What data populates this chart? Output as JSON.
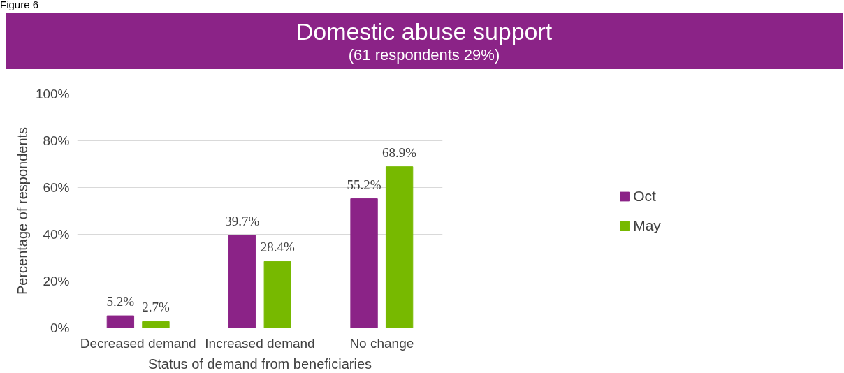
{
  "chart_data": {
    "type": "bar",
    "title": "Domestic abuse support",
    "subtitle": "(61 respondents 29%)",
    "xlabel": "Status of demand from beneficiaries",
    "ylabel": "Percentage of respondents",
    "annotations": [
      "Figure 6"
    ],
    "categories": [
      "Decreased demand",
      "Increased demand",
      "No change"
    ],
    "series": [
      {
        "name": "Oct",
        "color": "#8b2387",
        "values": [
          5.2,
          39.7,
          55.2
        ],
        "value_labels": [
          "5.2%",
          "39.7%",
          "55.2%"
        ]
      },
      {
        "name": "May",
        "color": "#77b900",
        "values": [
          2.7,
          28.4,
          68.9
        ],
        "value_labels": [
          "2.7%",
          "28.4%",
          "68.9%"
        ]
      }
    ],
    "ylim": [
      0,
      100
    ],
    "yticks": [
      {
        "value": 0,
        "label": "0%"
      },
      {
        "value": 20,
        "label": "20%"
      },
      {
        "value": 40,
        "label": "40%"
      },
      {
        "value": 60,
        "label": "60%"
      },
      {
        "value": 80,
        "label": "80%"
      },
      {
        "value": 100,
        "label": "100%"
      }
    ],
    "grid": "y",
    "legend": "right"
  }
}
